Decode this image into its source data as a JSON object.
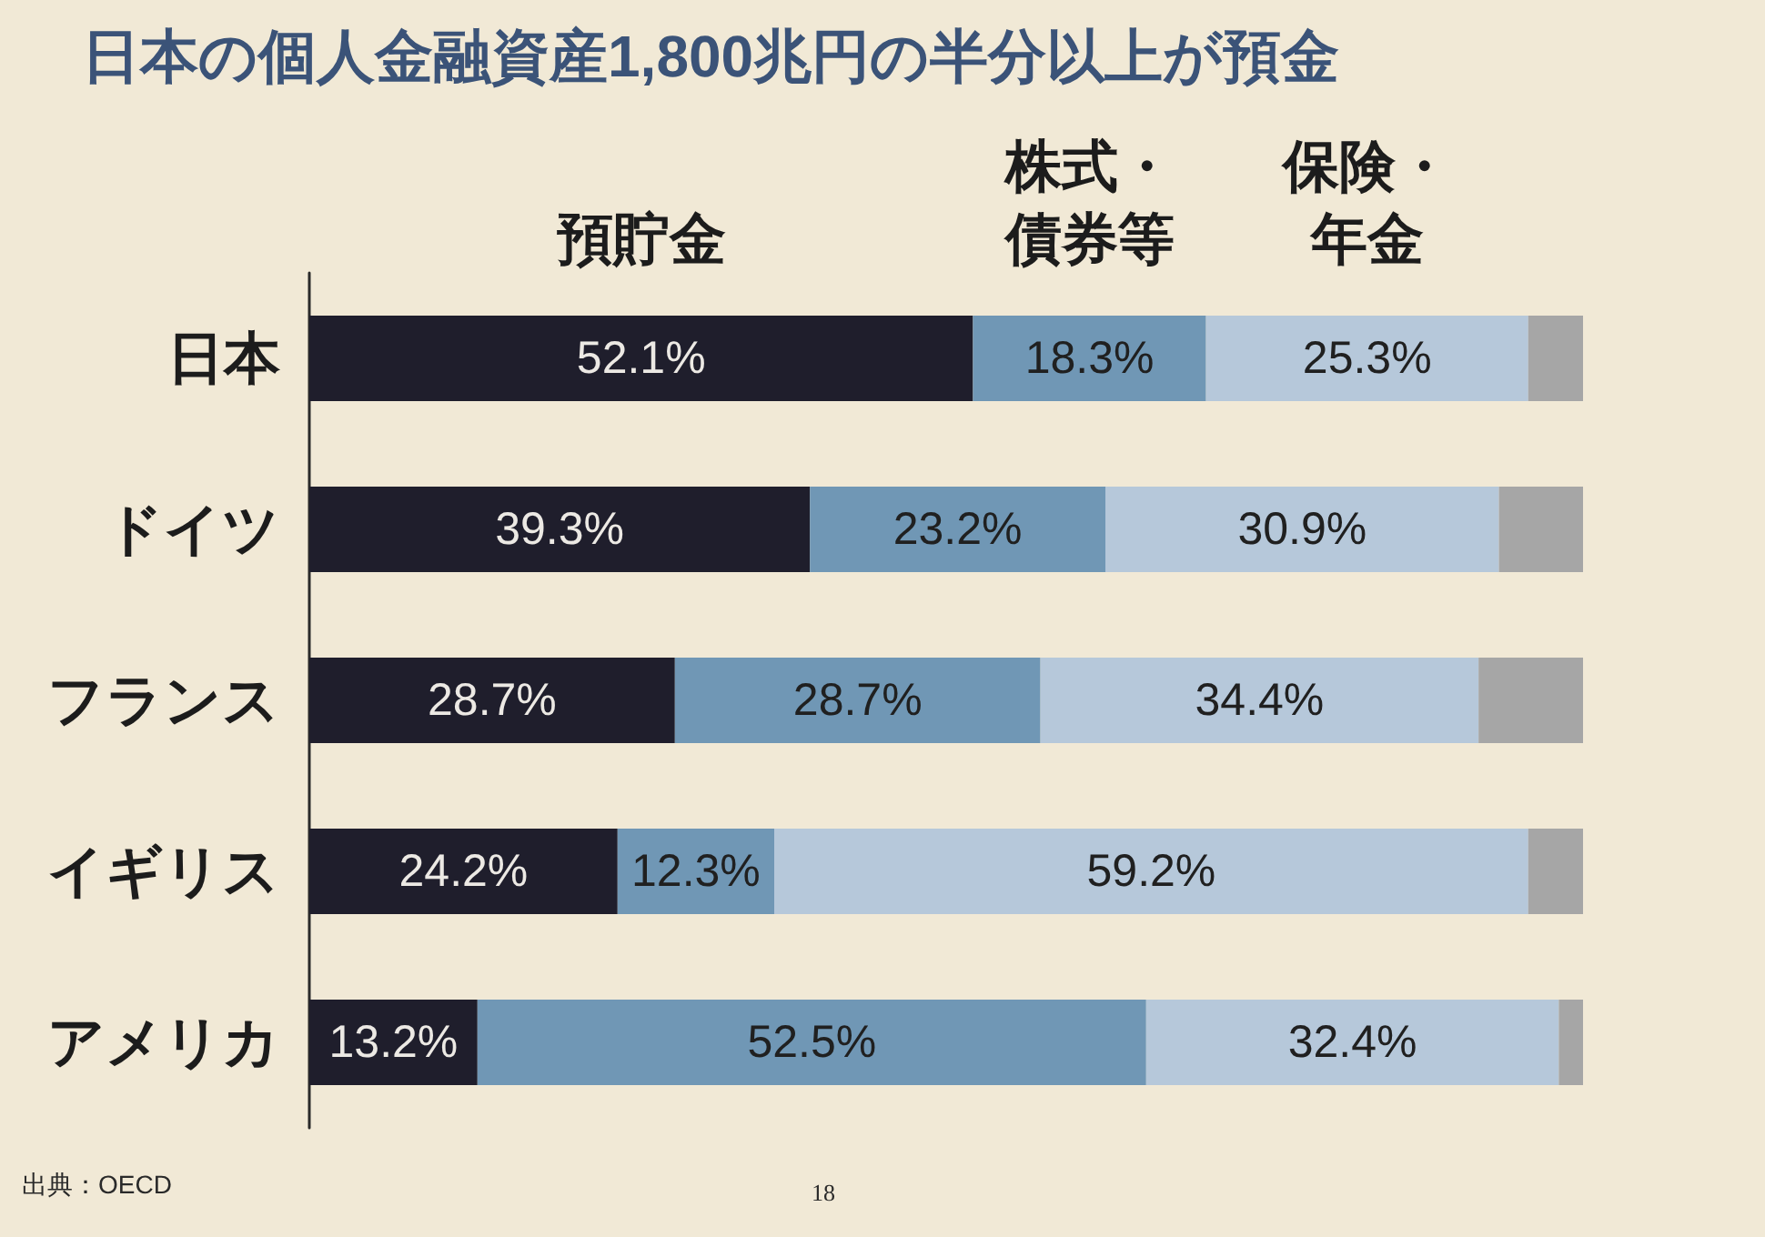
{
  "chart_data": {
    "type": "bar",
    "orientation": "horizontal",
    "stacked": true,
    "tick_labels": "y",
    "title": "日本の個人金融資産1,800兆円の半分以上が預金",
    "categories": [
      "日本",
      "ドイツ",
      "フランス",
      "イギリス",
      "アメリカ"
    ],
    "series": [
      {
        "name": "預貯金",
        "color": "#1f1e2c",
        "values": [
          52.1,
          39.3,
          28.7,
          24.2,
          13.2
        ],
        "value_labels": [
          "52.1%",
          "39.3%",
          "28.7%",
          "24.2%",
          "13.2%"
        ]
      },
      {
        "name": "株式・債券等",
        "color": "#7097b5",
        "values": [
          18.3,
          23.2,
          28.7,
          12.3,
          52.5
        ],
        "value_labels": [
          "18.3%",
          "23.2%",
          "28.7%",
          "12.3%",
          "52.5%"
        ]
      },
      {
        "name": "保険・年金",
        "color": "#b6c8da",
        "values": [
          25.3,
          30.9,
          34.4,
          59.2,
          32.4
        ],
        "value_labels": [
          "25.3%",
          "30.9%",
          "34.4%",
          "59.2%",
          "32.4%"
        ]
      },
      {
        "color": "#a6a6a6",
        "values": [
          4.3,
          6.6,
          8.2,
          4.3,
          1.9
        ]
      }
    ],
    "annotations": [
      "出典：OECD",
      "18"
    ]
  }
}
